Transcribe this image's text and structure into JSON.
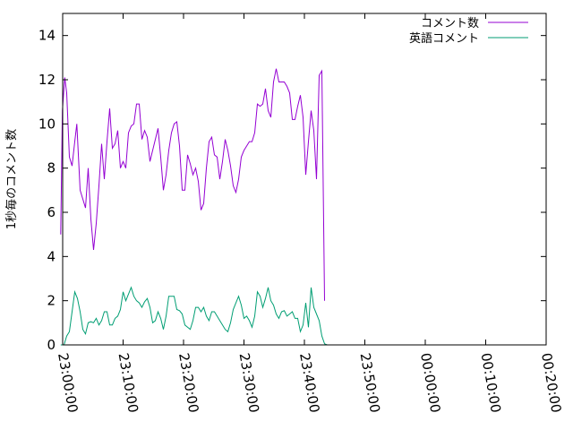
{
  "chart_data": {
    "type": "line",
    "title": "",
    "xlabel": "",
    "ylabel": "1秒毎のコメント数",
    "xlim": [
      "23:00:00",
      "00:20:00"
    ],
    "ylim": [
      0,
      15
    ],
    "xticks": [
      "23:00:00",
      "23:10:00",
      "23:20:00",
      "23:30:00",
      "23:40:00",
      "23:50:00",
      "00:00:00",
      "00:10:00",
      "00:20:00"
    ],
    "yticks": [
      0,
      2,
      4,
      6,
      8,
      10,
      12,
      14
    ],
    "grid": false,
    "legend_position": "top-right",
    "series": [
      {
        "name": "コメント数",
        "color": "#9400d3",
        "points": [
          [
            "22:59:40",
            5.0
          ],
          [
            "22:59:57",
            10.6
          ],
          [
            "23:00:20",
            12.1
          ],
          [
            "23:00:40",
            11.4
          ],
          [
            "23:01:07",
            8.5
          ],
          [
            "23:01:33",
            8.1
          ],
          [
            "23:02:00",
            9.2
          ],
          [
            "23:02:20",
            10.0
          ],
          [
            "23:02:53",
            7.0
          ],
          [
            "23:03:20",
            6.6
          ],
          [
            "23:03:47",
            6.2
          ],
          [
            "23:04:13",
            8.0
          ],
          [
            "23:04:40",
            5.7
          ],
          [
            "23:05:07",
            4.3
          ],
          [
            "23:05:33",
            5.5
          ],
          [
            "23:06:00",
            7.2
          ],
          [
            "23:06:27",
            9.1
          ],
          [
            "23:06:53",
            7.5
          ],
          [
            "23:07:20",
            9.2
          ],
          [
            "23:07:47",
            10.7
          ],
          [
            "23:08:13",
            8.9
          ],
          [
            "23:08:40",
            9.1
          ],
          [
            "23:09:07",
            9.7
          ],
          [
            "23:09:33",
            8.0
          ],
          [
            "23:10:00",
            8.3
          ],
          [
            "23:10:27",
            8.0
          ],
          [
            "23:10:53",
            9.6
          ],
          [
            "23:11:20",
            9.9
          ],
          [
            "23:11:47",
            10.0
          ],
          [
            "23:12:13",
            10.9
          ],
          [
            "23:12:40",
            10.9
          ],
          [
            "23:13:07",
            9.3
          ],
          [
            "23:13:33",
            9.7
          ],
          [
            "23:14:00",
            9.4
          ],
          [
            "23:14:27",
            8.3
          ],
          [
            "23:14:53",
            8.8
          ],
          [
            "23:15:20",
            9.3
          ],
          [
            "23:15:47",
            9.8
          ],
          [
            "23:16:13",
            8.5
          ],
          [
            "23:16:40",
            7.0
          ],
          [
            "23:17:07",
            7.7
          ],
          [
            "23:17:33",
            8.8
          ],
          [
            "23:18:00",
            9.6
          ],
          [
            "23:18:27",
            10.0
          ],
          [
            "23:18:53",
            10.1
          ],
          [
            "23:19:20",
            9.0
          ],
          [
            "23:19:47",
            7.0
          ],
          [
            "23:20:13",
            7.0
          ],
          [
            "23:20:40",
            8.6
          ],
          [
            "23:21:07",
            8.2
          ],
          [
            "23:21:33",
            7.7
          ],
          [
            "23:22:00",
            8.0
          ],
          [
            "23:22:27",
            7.4
          ],
          [
            "23:22:53",
            6.1
          ],
          [
            "23:23:20",
            6.4
          ],
          [
            "23:23:47",
            8.0
          ],
          [
            "23:24:13",
            9.2
          ],
          [
            "23:24:40",
            9.4
          ],
          [
            "23:25:07",
            8.6
          ],
          [
            "23:25:33",
            8.5
          ],
          [
            "23:26:00",
            7.5
          ],
          [
            "23:26:27",
            8.3
          ],
          [
            "23:26:53",
            9.3
          ],
          [
            "23:27:20",
            8.8
          ],
          [
            "23:27:47",
            8.1
          ],
          [
            "23:28:13",
            7.2
          ],
          [
            "23:28:40",
            6.9
          ],
          [
            "23:29:07",
            7.5
          ],
          [
            "23:29:33",
            8.5
          ],
          [
            "23:30:00",
            8.8
          ],
          [
            "23:30:27",
            9.0
          ],
          [
            "23:30:53",
            9.2
          ],
          [
            "23:31:20",
            9.2
          ],
          [
            "23:31:47",
            9.6
          ],
          [
            "23:32:13",
            10.9
          ],
          [
            "23:32:40",
            10.8
          ],
          [
            "23:33:07",
            10.9
          ],
          [
            "23:33:33",
            11.6
          ],
          [
            "23:34:00",
            10.6
          ],
          [
            "23:34:27",
            10.3
          ],
          [
            "23:34:53",
            11.9
          ],
          [
            "23:35:20",
            12.5
          ],
          [
            "23:35:47",
            11.9
          ],
          [
            "23:36:13",
            11.9
          ],
          [
            "23:36:40",
            11.9
          ],
          [
            "23:37:07",
            11.7
          ],
          [
            "23:37:33",
            11.4
          ],
          [
            "23:38:00",
            10.2
          ],
          [
            "23:38:27",
            10.2
          ],
          [
            "23:38:53",
            10.8
          ],
          [
            "23:39:20",
            11.3
          ],
          [
            "23:39:47",
            10.3
          ],
          [
            "23:40:13",
            7.7
          ],
          [
            "23:40:40",
            9.2
          ],
          [
            "23:41:07",
            10.6
          ],
          [
            "23:41:33",
            9.7
          ],
          [
            "23:42:00",
            7.5
          ],
          [
            "23:42:27",
            12.2
          ],
          [
            "23:42:53",
            12.4
          ],
          [
            "23:43:20",
            2.0
          ]
        ]
      },
      {
        "name": "英語コメント",
        "color": "#009e73",
        "points": [
          [
            "22:59:40",
            0.0
          ],
          [
            "23:00:13",
            0.0
          ],
          [
            "23:00:40",
            0.4
          ],
          [
            "23:01:07",
            0.6
          ],
          [
            "23:01:33",
            1.5
          ],
          [
            "23:02:00",
            2.4
          ],
          [
            "23:02:27",
            2.1
          ],
          [
            "23:02:53",
            1.5
          ],
          [
            "23:03:20",
            0.7
          ],
          [
            "23:03:47",
            0.5
          ],
          [
            "23:04:13",
            1.0
          ],
          [
            "23:04:40",
            1.05
          ],
          [
            "23:05:07",
            1.0
          ],
          [
            "23:05:33",
            1.2
          ],
          [
            "23:06:00",
            0.9
          ],
          [
            "23:06:27",
            1.1
          ],
          [
            "23:06:53",
            1.5
          ],
          [
            "23:07:20",
            1.5
          ],
          [
            "23:07:47",
            0.9
          ],
          [
            "23:08:13",
            0.9
          ],
          [
            "23:08:40",
            1.2
          ],
          [
            "23:09:07",
            1.3
          ],
          [
            "23:09:33",
            1.6
          ],
          [
            "23:10:00",
            2.4
          ],
          [
            "23:10:27",
            2.0
          ],
          [
            "23:10:53",
            2.3
          ],
          [
            "23:11:20",
            2.6
          ],
          [
            "23:11:47",
            2.2
          ],
          [
            "23:12:13",
            2.0
          ],
          [
            "23:12:40",
            1.9
          ],
          [
            "23:13:07",
            1.7
          ],
          [
            "23:13:33",
            1.95
          ],
          [
            "23:14:00",
            2.1
          ],
          [
            "23:14:27",
            1.7
          ],
          [
            "23:14:53",
            1.0
          ],
          [
            "23:15:20",
            1.1
          ],
          [
            "23:15:47",
            1.5
          ],
          [
            "23:16:13",
            1.2
          ],
          [
            "23:16:40",
            0.7
          ],
          [
            "23:17:07",
            1.3
          ],
          [
            "23:17:33",
            2.2
          ],
          [
            "23:18:00",
            2.2
          ],
          [
            "23:18:27",
            2.2
          ],
          [
            "23:18:53",
            1.6
          ],
          [
            "23:19:20",
            1.55
          ],
          [
            "23:19:47",
            1.4
          ],
          [
            "23:20:13",
            0.9
          ],
          [
            "23:20:40",
            0.8
          ],
          [
            "23:21:07",
            0.7
          ],
          [
            "23:21:33",
            1.1
          ],
          [
            "23:22:00",
            1.7
          ],
          [
            "23:22:27",
            1.7
          ],
          [
            "23:22:53",
            1.5
          ],
          [
            "23:23:20",
            1.7
          ],
          [
            "23:23:47",
            1.3
          ],
          [
            "23:24:13",
            1.1
          ],
          [
            "23:24:40",
            1.5
          ],
          [
            "23:25:07",
            1.5
          ],
          [
            "23:25:33",
            1.3
          ],
          [
            "23:26:00",
            1.1
          ],
          [
            "23:26:27",
            0.9
          ],
          [
            "23:26:53",
            0.7
          ],
          [
            "23:27:20",
            0.6
          ],
          [
            "23:27:47",
            1.0
          ],
          [
            "23:28:13",
            1.6
          ],
          [
            "23:28:40",
            1.9
          ],
          [
            "23:29:07",
            2.2
          ],
          [
            "23:29:33",
            1.8
          ],
          [
            "23:30:00",
            1.2
          ],
          [
            "23:30:27",
            1.3
          ],
          [
            "23:30:53",
            1.1
          ],
          [
            "23:31:20",
            0.8
          ],
          [
            "23:31:47",
            1.3
          ],
          [
            "23:32:13",
            2.4
          ],
          [
            "23:32:40",
            2.2
          ],
          [
            "23:33:07",
            1.7
          ],
          [
            "23:33:33",
            2.1
          ],
          [
            "23:34:00",
            2.6
          ],
          [
            "23:34:27",
            2.0
          ],
          [
            "23:34:53",
            1.8
          ],
          [
            "23:35:20",
            1.4
          ],
          [
            "23:35:47",
            1.2
          ],
          [
            "23:36:13",
            1.5
          ],
          [
            "23:36:40",
            1.55
          ],
          [
            "23:37:07",
            1.3
          ],
          [
            "23:37:33",
            1.4
          ],
          [
            "23:38:00",
            1.5
          ],
          [
            "23:38:27",
            1.2
          ],
          [
            "23:38:53",
            1.2
          ],
          [
            "23:39:20",
            0.6
          ],
          [
            "23:39:47",
            0.9
          ],
          [
            "23:40:13",
            1.9
          ],
          [
            "23:40:40",
            0.8
          ],
          [
            "23:41:07",
            2.6
          ],
          [
            "23:41:33",
            1.7
          ],
          [
            "23:42:00",
            1.4
          ],
          [
            "23:42:27",
            1.1
          ],
          [
            "23:42:53",
            0.4
          ],
          [
            "23:43:20",
            0.05
          ],
          [
            "23:43:47",
            0.0
          ]
        ]
      }
    ]
  }
}
